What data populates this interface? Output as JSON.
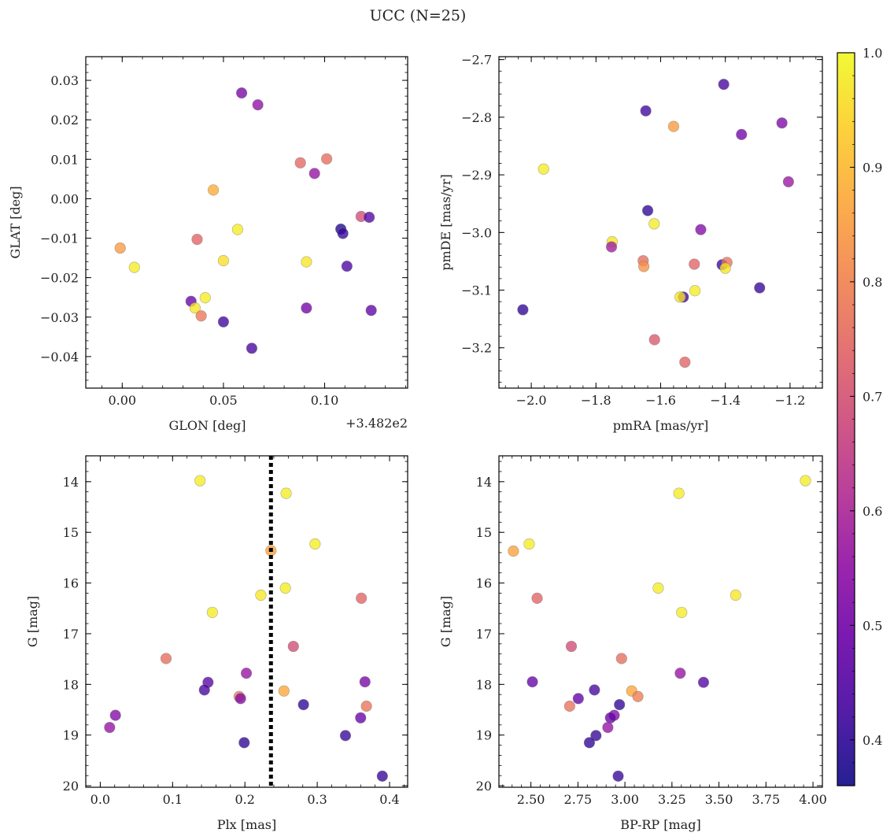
{
  "figure": {
    "title": "UCC (N=25)"
  },
  "colors": {
    "cmap_stops": [
      "#0d0887",
      "#41049d",
      "#6a00a8",
      "#8f0da4",
      "#b12a90",
      "#cc4778",
      "#e16462",
      "#f2844b",
      "#fca636",
      "#fcce25",
      "#f0f921"
    ],
    "cmap_range": [
      0.36,
      1.0
    ],
    "point_alpha": 0.78,
    "line": "#000000"
  },
  "colorbar": {
    "ticks": [
      0.4,
      0.5,
      0.6,
      0.7,
      0.8,
      0.9,
      1.0
    ],
    "tick_labels": [
      "0.4",
      "0.5",
      "0.6",
      "0.7",
      "0.8",
      "0.9",
      "1.0"
    ]
  },
  "chart_data": [
    {
      "type": "scatter",
      "xlabel": "GLON [deg]",
      "ylabel": "GLAT [deg]",
      "offset_text": "+3.482e2",
      "xlim": [
        -0.018,
        0.141
      ],
      "ylim": [
        -0.048,
        0.036
      ],
      "xticks": [
        0.0,
        0.05,
        0.1
      ],
      "xtick_labels": [
        "0.00",
        "0.05",
        "0.10"
      ],
      "yticks": [
        -0.04,
        -0.03,
        -0.02,
        -0.01,
        0.0,
        0.01,
        0.02,
        0.03
      ],
      "ytick_labels": [
        "−0.04",
        "−0.03",
        "−0.02",
        "−0.01",
        "0.00",
        "0.01",
        "0.02",
        "0.03"
      ],
      "points": [
        {
          "x": 0.059,
          "y": 0.0268,
          "c": 0.51
        },
        {
          "x": 0.067,
          "y": 0.0238,
          "c": 0.55
        },
        {
          "x": 0.101,
          "y": 0.0101,
          "c": 0.76
        },
        {
          "x": 0.088,
          "y": 0.0091,
          "c": 0.75
        },
        {
          "x": 0.095,
          "y": 0.0064,
          "c": 0.56
        },
        {
          "x": 0.045,
          "y": 0.0022,
          "c": 0.88
        },
        {
          "x": 0.118,
          "y": -0.0045,
          "c": 0.69
        },
        {
          "x": 0.122,
          "y": -0.0047,
          "c": 0.45
        },
        {
          "x": 0.057,
          "y": -0.0078,
          "c": 0.98
        },
        {
          "x": 0.108,
          "y": -0.0077,
          "c": 0.38
        },
        {
          "x": 0.109,
          "y": -0.0088,
          "c": 0.41
        },
        {
          "x": 0.037,
          "y": -0.0103,
          "c": 0.74
        },
        {
          "x": -0.001,
          "y": -0.0125,
          "c": 0.85
        },
        {
          "x": 0.05,
          "y": -0.0157,
          "c": 0.96
        },
        {
          "x": 0.091,
          "y": -0.016,
          "c": 0.97
        },
        {
          "x": 0.111,
          "y": -0.0171,
          "c": 0.44
        },
        {
          "x": 0.006,
          "y": -0.0174,
          "c": 0.98
        },
        {
          "x": 0.041,
          "y": -0.0251,
          "c": 0.98
        },
        {
          "x": 0.034,
          "y": -0.026,
          "c": 0.48
        },
        {
          "x": 0.091,
          "y": -0.0277,
          "c": 0.5
        },
        {
          "x": 0.036,
          "y": -0.0277,
          "c": 0.97
        },
        {
          "x": 0.123,
          "y": -0.0283,
          "c": 0.47
        },
        {
          "x": 0.039,
          "y": -0.0297,
          "c": 0.78
        },
        {
          "x": 0.05,
          "y": -0.0312,
          "c": 0.42
        },
        {
          "x": 0.064,
          "y": -0.0379,
          "c": 0.43
        }
      ]
    },
    {
      "type": "scatter",
      "xlabel": "pmRA [mas/yr]",
      "ylabel": "pmDE [mas/yr]",
      "xlim": [
        -2.1,
        -1.1
      ],
      "ylim": [
        -3.27,
        -2.695
      ],
      "xticks": [
        -2.0,
        -1.8,
        -1.6,
        -1.4,
        -1.2
      ],
      "xtick_labels": [
        "−2.0",
        "−1.8",
        "−1.6",
        "−1.4",
        "−1.2"
      ],
      "yticks": [
        -3.2,
        -3.1,
        -3.0,
        -2.9,
        -2.8,
        -2.7
      ],
      "ytick_labels": [
        "−3.2",
        "−3.1",
        "−3.0",
        "−2.9",
        "−2.8",
        "−2.7"
      ],
      "points": [
        {
          "x": -1.405,
          "y": -2.743,
          "c": 0.43
        },
        {
          "x": -1.646,
          "y": -2.789,
          "c": 0.42
        },
        {
          "x": -1.56,
          "y": -2.816,
          "c": 0.85
        },
        {
          "x": -1.225,
          "y": -2.81,
          "c": 0.52
        },
        {
          "x": -1.35,
          "y": -2.83,
          "c": 0.5
        },
        {
          "x": -1.962,
          "y": -2.89,
          "c": 0.98
        },
        {
          "x": -1.205,
          "y": -2.912,
          "c": 0.57
        },
        {
          "x": -1.64,
          "y": -2.962,
          "c": 0.4
        },
        {
          "x": -1.62,
          "y": -2.985,
          "c": 0.98
        },
        {
          "x": -1.476,
          "y": -2.995,
          "c": 0.53
        },
        {
          "x": -1.75,
          "y": -3.016,
          "c": 0.97
        },
        {
          "x": -1.752,
          "y": -3.025,
          "c": 0.58
        },
        {
          "x": -1.654,
          "y": -3.049,
          "c": 0.76
        },
        {
          "x": -1.652,
          "y": -3.059,
          "c": 0.83
        },
        {
          "x": -1.496,
          "y": -3.055,
          "c": 0.74
        },
        {
          "x": -1.41,
          "y": -3.056,
          "c": 0.42
        },
        {
          "x": -1.395,
          "y": -3.052,
          "c": 0.77
        },
        {
          "x": -1.4,
          "y": -3.062,
          "c": 0.97
        },
        {
          "x": -2.026,
          "y": -3.134,
          "c": 0.4
        },
        {
          "x": -1.294,
          "y": -3.096,
          "c": 0.41
        },
        {
          "x": -1.494,
          "y": -3.101,
          "c": 0.98
        },
        {
          "x": -1.53,
          "y": -3.112,
          "c": 0.42
        },
        {
          "x": -1.54,
          "y": -3.112,
          "c": 0.97
        },
        {
          "x": -1.619,
          "y": -3.186,
          "c": 0.72
        },
        {
          "x": -1.525,
          "y": -3.225,
          "c": 0.74
        }
      ]
    },
    {
      "type": "scatter",
      "xlabel": "Plx [mas]",
      "ylabel": "G [mag]",
      "invert_y": true,
      "xlim": [
        -0.02,
        0.425
      ],
      "ylim": [
        20.03,
        13.49
      ],
      "xticks": [
        0.0,
        0.1,
        0.2,
        0.3,
        0.4
      ],
      "xtick_labels": [
        "0.0",
        "0.1",
        "0.2",
        "0.3",
        "0.4"
      ],
      "yticks": [
        14,
        15,
        16,
        17,
        18,
        19,
        20
      ],
      "ytick_labels": [
        "14",
        "15",
        "16",
        "17",
        "18",
        "19",
        "20"
      ],
      "vline": {
        "x": 0.236,
        "style": "dotted"
      },
      "points": [
        {
          "x": 0.138,
          "y": 13.98,
          "c": 0.98
        },
        {
          "x": 0.257,
          "y": 14.23,
          "c": 0.98
        },
        {
          "x": 0.297,
          "y": 15.23,
          "c": 0.98
        },
        {
          "x": 0.236,
          "y": 15.36,
          "c": 0.86
        },
        {
          "x": 0.256,
          "y": 16.1,
          "c": 0.98
        },
        {
          "x": 0.222,
          "y": 16.24,
          "c": 0.97
        },
        {
          "x": 0.361,
          "y": 16.3,
          "c": 0.74
        },
        {
          "x": 0.155,
          "y": 16.58,
          "c": 0.98
        },
        {
          "x": 0.267,
          "y": 17.25,
          "c": 0.69
        },
        {
          "x": 0.091,
          "y": 17.49,
          "c": 0.76
        },
        {
          "x": 0.202,
          "y": 17.78,
          "c": 0.56
        },
        {
          "x": 0.149,
          "y": 17.96,
          "c": 0.46
        },
        {
          "x": 0.366,
          "y": 17.95,
          "c": 0.51
        },
        {
          "x": 0.144,
          "y": 18.11,
          "c": 0.43
        },
        {
          "x": 0.254,
          "y": 18.13,
          "c": 0.87
        },
        {
          "x": 0.192,
          "y": 18.24,
          "c": 0.79
        },
        {
          "x": 0.194,
          "y": 18.28,
          "c": 0.53
        },
        {
          "x": 0.281,
          "y": 18.4,
          "c": 0.4
        },
        {
          "x": 0.368,
          "y": 18.43,
          "c": 0.77
        },
        {
          "x": 0.021,
          "y": 18.61,
          "c": 0.53
        },
        {
          "x": 0.36,
          "y": 18.66,
          "c": 0.48
        },
        {
          "x": 0.013,
          "y": 18.85,
          "c": 0.56
        },
        {
          "x": 0.339,
          "y": 19.01,
          "c": 0.41
        },
        {
          "x": 0.199,
          "y": 19.15,
          "c": 0.4
        },
        {
          "x": 0.39,
          "y": 19.81,
          "c": 0.41
        }
      ]
    },
    {
      "type": "scatter",
      "xlabel": "BP-RP [mag]",
      "ylabel": "G [mag]",
      "invert_y": true,
      "xlim": [
        2.33,
        4.05
      ],
      "ylim": [
        20.03,
        13.49
      ],
      "xticks": [
        2.5,
        2.75,
        3.0,
        3.25,
        3.5,
        3.75,
        4.0
      ],
      "xtick_labels": [
        "2.50",
        "2.75",
        "3.00",
        "3.25",
        "3.50",
        "3.75",
        "4.00"
      ],
      "yticks": [
        14,
        15,
        16,
        17,
        18,
        19,
        20
      ],
      "ytick_labels": [
        "14",
        "15",
        "16",
        "17",
        "18",
        "19",
        "20"
      ],
      "points": [
        {
          "x": 3.96,
          "y": 13.98,
          "c": 0.98
        },
        {
          "x": 3.287,
          "y": 14.23,
          "c": 0.98
        },
        {
          "x": 2.491,
          "y": 15.23,
          "c": 0.98
        },
        {
          "x": 2.407,
          "y": 15.37,
          "c": 0.86
        },
        {
          "x": 3.177,
          "y": 16.1,
          "c": 0.98
        },
        {
          "x": 3.589,
          "y": 16.24,
          "c": 0.97
        },
        {
          "x": 2.533,
          "y": 16.3,
          "c": 0.74
        },
        {
          "x": 3.302,
          "y": 16.58,
          "c": 0.98
        },
        {
          "x": 2.715,
          "y": 17.25,
          "c": 0.69
        },
        {
          "x": 2.982,
          "y": 17.49,
          "c": 0.76
        },
        {
          "x": 3.294,
          "y": 17.78,
          "c": 0.56
        },
        {
          "x": 2.508,
          "y": 17.95,
          "c": 0.48
        },
        {
          "x": 3.418,
          "y": 17.96,
          "c": 0.45
        },
        {
          "x": 2.838,
          "y": 18.11,
          "c": 0.43
        },
        {
          "x": 3.036,
          "y": 18.13,
          "c": 0.87
        },
        {
          "x": 3.069,
          "y": 18.24,
          "c": 0.79
        },
        {
          "x": 2.752,
          "y": 18.28,
          "c": 0.47
        },
        {
          "x": 2.971,
          "y": 18.4,
          "c": 0.4
        },
        {
          "x": 2.706,
          "y": 18.43,
          "c": 0.77
        },
        {
          "x": 2.943,
          "y": 18.61,
          "c": 0.53
        },
        {
          "x": 2.923,
          "y": 18.66,
          "c": 0.48
        },
        {
          "x": 2.909,
          "y": 18.85,
          "c": 0.56
        },
        {
          "x": 2.846,
          "y": 19.01,
          "c": 0.41
        },
        {
          "x": 2.811,
          "y": 19.15,
          "c": 0.4
        },
        {
          "x": 2.964,
          "y": 19.81,
          "c": 0.41
        }
      ]
    }
  ]
}
